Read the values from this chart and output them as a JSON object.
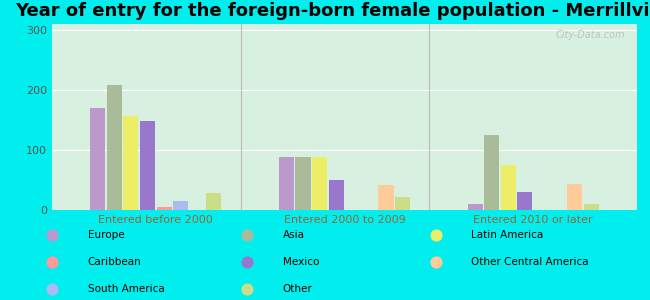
{
  "title": "Year of entry for the foreign-born female population - Merrillville",
  "groups": [
    "Entered before 2000",
    "Entered 2000 to 2009",
    "Entered 2010 or later"
  ],
  "categories": [
    "Europe",
    "Asia",
    "Latin America",
    "Mexico",
    "Caribbean",
    "South America",
    "Other Central America",
    "Other"
  ],
  "colors": {
    "Europe": "#bb99cc",
    "Caribbean": "#ff9999",
    "South America": "#aabbee",
    "Asia": "#aabb99",
    "Mexico": "#9977cc",
    "Other": "#ccdd88",
    "Latin America": "#eeee66",
    "Other Central America": "#ffcc99"
  },
  "values": {
    "Entered before 2000": {
      "Europe": 170,
      "Caribbean": 5,
      "South America": 15,
      "Asia": 208,
      "Mexico": 148,
      "Other": 28,
      "Latin America": 157,
      "Other Central America": 0
    },
    "Entered 2000 to 2009": {
      "Europe": 88,
      "Caribbean": 0,
      "South America": 0,
      "Asia": 88,
      "Mexico": 50,
      "Other": 22,
      "Latin America": 88,
      "Other Central America": 42
    },
    "Entered 2010 or later": {
      "Europe": 10,
      "Caribbean": 0,
      "South America": 0,
      "Asia": 125,
      "Mexico": 30,
      "Other": 10,
      "Latin America": 75,
      "Other Central America": 43
    }
  },
  "ylim": [
    0,
    310
  ],
  "yticks": [
    0,
    100,
    200,
    300
  ],
  "background_outer": "#00eeee",
  "background_inner_top": "#d8f0e0",
  "background_inner_bottom": "#e8faf0",
  "bar_width": 0.08,
  "title_fontsize": 13,
  "group_centers": [
    1.5,
    5.0,
    8.5
  ],
  "watermark": "City-Data.com"
}
